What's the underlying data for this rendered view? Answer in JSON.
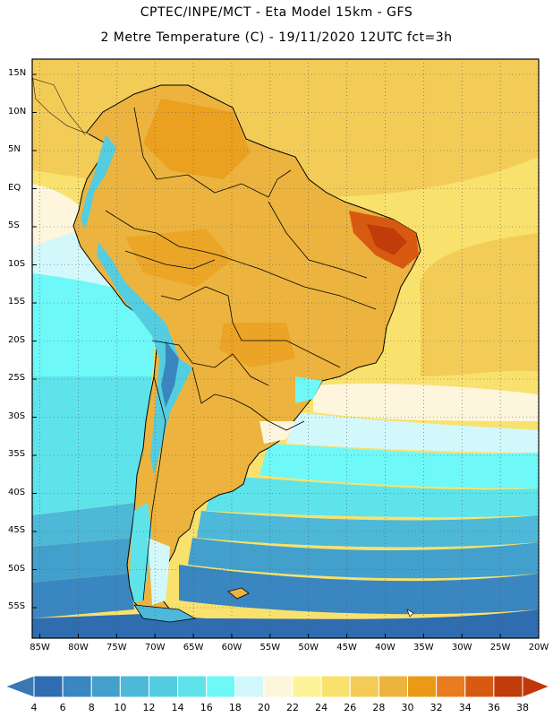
{
  "title_line1": "CPTEC/INPE/MCT -  Eta Model 15km - GFS",
  "title_line2": "2 Metre Temperature (C) - 19/11/2020 12UTC fct=3h",
  "map": {
    "lon_range": [
      -86,
      -20
    ],
    "lat_range": [
      -59,
      17
    ],
    "lat_ticks": [
      "15N",
      "10N",
      "5N",
      "EQ",
      "5S",
      "10S",
      "15S",
      "20S",
      "25S",
      "30S",
      "35S",
      "40S",
      "45S",
      "50S",
      "55S"
    ],
    "lon_ticks": [
      "85W",
      "80W",
      "75W",
      "70W",
      "65W",
      "60W",
      "55W",
      "50W",
      "45W",
      "40W",
      "35W",
      "30W",
      "25W",
      "20W"
    ],
    "gridlines": "dotted every 5 degrees",
    "region": "South America"
  },
  "colorbar": {
    "labels": [
      "4",
      "6",
      "8",
      "10",
      "12",
      "14",
      "16",
      "18",
      "20",
      "22",
      "24",
      "26",
      "28",
      "30",
      "32",
      "34",
      "36",
      "38"
    ],
    "colors": [
      "#2f6db0",
      "#3a86c0",
      "#43a0cc",
      "#4db8d8",
      "#55cde0",
      "#5fe3ea",
      "#6ef8f8",
      "#d3f8fc",
      "#fdf5dc",
      "#fdf39a",
      "#f9e16e",
      "#f3cc58",
      "#ecb43e",
      "#eb9a16",
      "#e87c1e",
      "#d85a10",
      "#c23c0a"
    ],
    "low_color": "#3a78b4",
    "high_color": "#c0380a"
  },
  "colors": {
    "ocean_north": "#f3cc58",
    "land_warm": "#ecb43e",
    "land_hot": "#e87c1e",
    "andes_cold": "#55cde0",
    "ocean_south": "#3a86c0",
    "ocean_far_south": "#2f6db0"
  }
}
